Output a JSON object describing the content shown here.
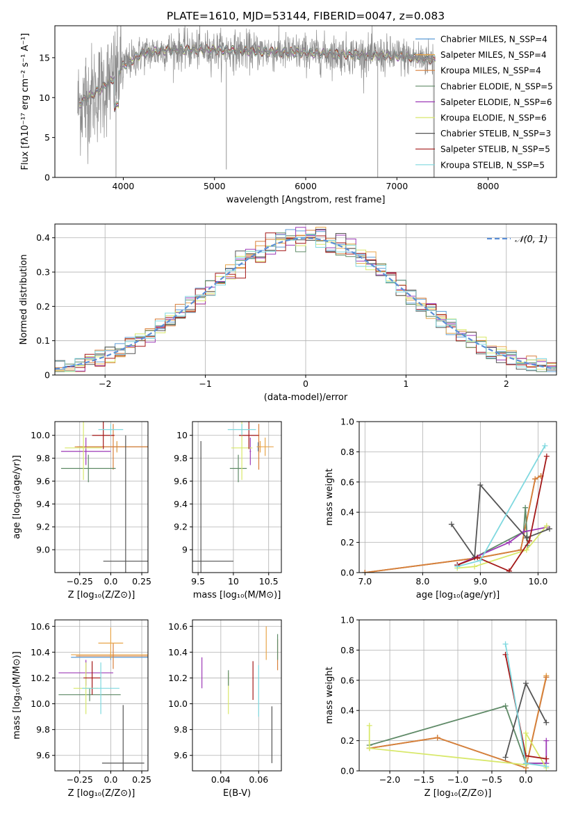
{
  "colors": {
    "chabrier_miles": "#5b9bd5",
    "salpeter_miles": "#e8a54a",
    "kroupa_miles": "#d87f3a",
    "chabrier_elodie": "#5f8a67",
    "salpeter_elodie": "#9c39b6",
    "kroupa_elodie": "#d8e86a",
    "chabrier_stelib": "#555555",
    "salpeter_stelib": "#a31717",
    "kroupa_stelib": "#7fd8df",
    "data_gray": "#8a8a8a",
    "gauss": "#5b8ed6",
    "grid": "#b0b0b0"
  },
  "chart_data": [
    {
      "id": "spectrum",
      "type": "line",
      "title": "PLATE=1610, MJD=53144, FIBERID=0047, z=0.083",
      "xlabel": "wavelength [Angstrom, rest frame]",
      "ylabel": "Flux [fλ10⁻¹⁷ erg cm⁻² s⁻¹ A⁻¹]",
      "xlim": [
        3250,
        8750
      ],
      "ylim": [
        0,
        19
      ],
      "xticks": [
        4000,
        5000,
        6000,
        7000,
        8000
      ],
      "yticks": [
        0,
        5,
        10,
        15
      ],
      "grid": false,
      "legend_position": "top-right",
      "continuum_points": [
        [
          3500,
          9
        ],
        [
          3600,
          10
        ],
        [
          3750,
          11
        ],
        [
          3900,
          12.5
        ],
        [
          4000,
          14
        ],
        [
          4200,
          15.5
        ],
        [
          4500,
          16
        ],
        [
          5000,
          16
        ],
        [
          5500,
          15.8
        ],
        [
          6000,
          15.6
        ],
        [
          6500,
          15.4
        ],
        [
          7000,
          15.2
        ],
        [
          7400,
          14.8
        ]
      ],
      "legend": [
        "Chabrier MILES, N_SSP=4",
        "Salpeter MILES, N_SSP=4",
        "Kroupa MILES, N_SSP=4",
        "Chabrier ELODIE, N_SSP=5",
        "Salpeter ELODIE, N_SSP=6",
        "Kroupa ELODIE, N_SSP=6",
        "Chabrier STELIB, N_SSP=3",
        "Salpeter STELIB, N_SSP=5",
        "Kroupa STELIB, N_SSP=5"
      ]
    },
    {
      "id": "residuals",
      "type": "histogram",
      "xlabel": "(data-model)/error",
      "ylabel": "Normed distribution",
      "xlim": [
        -2.5,
        2.5
      ],
      "ylim": [
        0,
        0.44
      ],
      "xticks": [
        -2,
        -1,
        0,
        1,
        2
      ],
      "yticks": [
        0.0,
        0.1,
        0.2,
        0.3,
        0.4
      ],
      "grid": true,
      "legend": [
        "𝒩(0, 1)"
      ],
      "legend_position": "top-right",
      "bin_width": 0.1,
      "gaussian": {
        "mean": 0,
        "sigma": 1
      }
    },
    {
      "id": "age_vs_Z",
      "type": "errorbar",
      "xlabel": "Z [log₁₀(Z/Z⊙)]",
      "ylabel": "age  [log₁₀(age/yr)]",
      "xlim": [
        -0.45,
        0.3
      ],
      "ylim": [
        8.8,
        10.12
      ],
      "xticks": [
        -0.25,
        0.0,
        0.25
      ],
      "yticks": [
        9.0,
        9.2,
        9.4,
        9.6,
        9.8,
        10.0
      ],
      "grid": true,
      "points": [
        {
          "series": "chabrier_miles",
          "x": 0.05,
          "xerr": 0.3,
          "y": 9.9,
          "yerr": 0.04
        },
        {
          "series": "salpeter_miles",
          "x": 0.05,
          "xerr": 0.32,
          "y": 9.9,
          "yerr": 0.05
        },
        {
          "series": "kroupa_miles",
          "x": 0.02,
          "xerr": 0.31,
          "y": 9.9,
          "yerr": 0.2
        },
        {
          "series": "chabrier_elodie",
          "x": -0.18,
          "xerr": 0.22,
          "y": 9.71,
          "yerr": 0.12
        },
        {
          "series": "salpeter_elodie",
          "x": -0.2,
          "xerr": 0.2,
          "y": 9.86,
          "yerr": 0.12
        },
        {
          "series": "kroupa_elodie",
          "x": -0.22,
          "xerr": 0.15,
          "y": 9.89,
          "yerr": 0.28
        },
        {
          "series": "chabrier_stelib",
          "x": 0.12,
          "xerr": 0.18,
          "y": 8.9,
          "yerr": 1.1
        },
        {
          "series": "salpeter_stelib",
          "x": -0.06,
          "xerr": 0.09,
          "y": 10.0,
          "yerr": 0.12
        },
        {
          "series": "kroupa_stelib",
          "x": 0.0,
          "xerr": 0.1,
          "y": 10.05,
          "yerr": 0.05
        }
      ]
    },
    {
      "id": "age_vs_mass",
      "type": "errorbar",
      "xlabel": "mass [log₁₀(M/M⊙)]",
      "ylabel": "",
      "xlim": [
        9.42,
        10.68
      ],
      "ylim": [
        8.8,
        10.12
      ],
      "xticks": [
        9.5,
        10.0,
        10.5
      ],
      "yticks": [
        9.0,
        9.2,
        9.4,
        9.6,
        9.8,
        10.0
      ],
      "grid": true,
      "points": [
        {
          "series": "chabrier_miles",
          "x": 10.35,
          "xerr": 0.01,
          "y": 9.9,
          "yerr": 0.04
        },
        {
          "series": "salpeter_miles",
          "x": 10.38,
          "xerr": 0.01,
          "y": 9.9,
          "yerr": 0.05
        },
        {
          "series": "kroupa_miles",
          "x": 10.36,
          "xerr": 0.01,
          "y": 9.9,
          "yerr": 0.2
        },
        {
          "series": "chabrier_elodie",
          "x": 10.07,
          "xerr": 0.12,
          "y": 9.71,
          "yerr": 0.12
        },
        {
          "series": "salpeter_elodie",
          "x": 10.24,
          "xerr": 0.01,
          "y": 9.86,
          "yerr": 0.12
        },
        {
          "series": "kroupa_elodie",
          "x": 10.12,
          "xerr": 0.15,
          "y": 9.89,
          "yerr": 0.28
        },
        {
          "series": "chabrier_stelib",
          "x": 9.54,
          "xerr": 0.46,
          "y": 8.9,
          "yerr": 1.05
        },
        {
          "series": "salpeter_stelib",
          "x": 10.22,
          "xerr": 0.14,
          "y": 10.0,
          "yerr": 0.12
        },
        {
          "series": "kroupa_stelib",
          "x": 10.12,
          "xerr": 0.2,
          "y": 10.05,
          "yerr": 0.05
        },
        {
          "series": "salpeter_miles",
          "x": 10.45,
          "xerr": 0.12,
          "y": 9.9,
          "yerr": 0.08
        }
      ]
    },
    {
      "id": "weight_vs_age",
      "type": "line",
      "xlabel": "age  [log₁₀(age/yr)]",
      "ylabel": "mass weight",
      "xlim": [
        6.9,
        10.32
      ],
      "ylim": [
        0,
        1.0
      ],
      "xticks": [
        7,
        8,
        9,
        10
      ],
      "yticks": [
        0.0,
        0.2,
        0.4,
        0.6,
        0.8,
        1.0
      ],
      "grid": true,
      "series": [
        {
          "series": "chabrier_miles",
          "points": [
            [
              7.0,
              0.0
            ],
            [
              9.0,
              0.1
            ],
            [
              9.7,
              0.15
            ],
            [
              9.95,
              0.62
            ],
            [
              10.05,
              0.64
            ]
          ]
        },
        {
          "series": "salpeter_miles",
          "points": [
            [
              7.0,
              0.0
            ],
            [
              9.0,
              0.1
            ],
            [
              9.7,
              0.15
            ],
            [
              9.95,
              0.62
            ],
            [
              10.05,
              0.64
            ]
          ]
        },
        {
          "series": "kroupa_miles",
          "points": [
            [
              7.0,
              0.0
            ],
            [
              9.0,
              0.1
            ],
            [
              9.7,
              0.15
            ],
            [
              9.95,
              0.62
            ],
            [
              10.05,
              0.64
            ]
          ]
        },
        {
          "series": "chabrier_elodie",
          "points": [
            [
              8.6,
              0.05
            ],
            [
              8.9,
              0.1
            ],
            [
              9.75,
              0.27
            ],
            [
              9.78,
              0.43
            ],
            [
              9.82,
              0.18
            ]
          ]
        },
        {
          "series": "salpeter_elodie",
          "points": [
            [
              8.6,
              0.05
            ],
            [
              8.9,
              0.1
            ],
            [
              9.5,
              0.2
            ],
            [
              9.75,
              0.27
            ],
            [
              10.15,
              0.3
            ]
          ]
        },
        {
          "series": "kroupa_elodie",
          "points": [
            [
              8.6,
              0.03
            ],
            [
              8.9,
              0.04
            ],
            [
              9.8,
              0.15
            ],
            [
              10.15,
              0.31
            ]
          ]
        },
        {
          "series": "chabrier_stelib",
          "points": [
            [
              8.5,
              0.32
            ],
            [
              8.9,
              0.1
            ],
            [
              9.0,
              0.58
            ],
            [
              9.8,
              0.23
            ],
            [
              10.2,
              0.29
            ]
          ]
        },
        {
          "series": "salpeter_stelib",
          "points": [
            [
              8.6,
              0.05
            ],
            [
              8.95,
              0.1
            ],
            [
              9.5,
              0.01
            ],
            [
              9.85,
              0.21
            ],
            [
              10.15,
              0.77
            ]
          ]
        },
        {
          "series": "kroupa_stelib",
          "points": [
            [
              8.6,
              0.04
            ],
            [
              9.0,
              0.08
            ],
            [
              10.12,
              0.84
            ]
          ]
        }
      ]
    },
    {
      "id": "mass_vs_Z",
      "type": "errorbar",
      "xlabel": "Z [log₁₀(Z/Z⊙)]",
      "ylabel": "mass [log₁₀(M/M⊙)]",
      "xlim": [
        -0.45,
        0.3
      ],
      "ylim": [
        9.48,
        10.65
      ],
      "xticks": [
        -0.25,
        0.0,
        0.25
      ],
      "yticks": [
        9.6,
        9.8,
        10.0,
        10.2,
        10.4,
        10.6
      ],
      "grid": true,
      "points": [
        {
          "series": "chabrier_miles",
          "x": 0.0,
          "xerr": 0.32,
          "y": 10.36,
          "yerr": 0.02
        },
        {
          "series": "salpeter_miles",
          "x": 0.0,
          "xerr": 0.32,
          "y": 10.38,
          "yerr": 0.02
        },
        {
          "series": "kroupa_miles",
          "x": 0.02,
          "xerr": 0.3,
          "y": 10.37,
          "yerr": 0.1
        },
        {
          "series": "chabrier_elodie",
          "x": -0.17,
          "xerr": 0.25,
          "y": 10.07,
          "yerr": 0.05
        },
        {
          "series": "salpeter_elodie",
          "x": -0.2,
          "xerr": 0.22,
          "y": 10.24,
          "yerr": 0.1
        },
        {
          "series": "kroupa_elodie",
          "x": -0.2,
          "xerr": 0.1,
          "y": 10.12,
          "yerr": 0.2
        },
        {
          "series": "chabrier_stelib",
          "x": 0.1,
          "xerr": 0.17,
          "y": 9.54,
          "yerr": 0.45
        },
        {
          "series": "salpeter_stelib",
          "x": -0.15,
          "xerr": 0.07,
          "y": 10.2,
          "yerr": 0.13
        },
        {
          "series": "kroupa_stelib",
          "x": -0.08,
          "xerr": 0.15,
          "y": 10.12,
          "yerr": 0.2
        },
        {
          "series": "salpeter_miles",
          "x": 0.0,
          "xerr": 0.1,
          "y": 10.47,
          "yerr": 0.12
        }
      ]
    },
    {
      "id": "mass_vs_ebv",
      "type": "errorbar",
      "xlabel": "E(B-V)",
      "ylabel": "",
      "xlim": [
        0.025,
        0.072
      ],
      "ylim": [
        9.48,
        10.65
      ],
      "xticks": [
        0.04,
        0.06
      ],
      "yticks": [
        9.6,
        9.8,
        10.0,
        10.2,
        10.4,
        10.6
      ],
      "grid": true,
      "points": [
        {
          "series": "salpeter_elodie",
          "x": 0.03,
          "y": 10.24,
          "yerr": 0.12
        },
        {
          "series": "kroupa_elodie",
          "x": 0.044,
          "y": 10.08,
          "yerr": 0.16
        },
        {
          "series": "chabrier_elodie",
          "x": 0.044,
          "y": 10.2,
          "yerr": 0.06
        },
        {
          "series": "salpeter_stelib",
          "x": 0.057,
          "y": 10.18,
          "yerr": 0.15
        },
        {
          "series": "kroupa_stelib",
          "x": 0.06,
          "y": 10.1,
          "yerr": 0.2
        },
        {
          "series": "salpeter_miles",
          "x": 0.064,
          "y": 10.47,
          "yerr": 0.13
        },
        {
          "series": "chabrier_stelib",
          "x": 0.067,
          "y": 9.76,
          "yerr": 0.22
        },
        {
          "series": "kroupa_miles",
          "x": 0.07,
          "y": 10.38,
          "yerr": 0.12
        },
        {
          "series": "chabrier_elodie",
          "x": 0.07,
          "y": 10.44,
          "yerr": 0.1
        }
      ]
    },
    {
      "id": "weight_vs_Z",
      "type": "line",
      "xlabel": "Z [log₁₀(Z/Z⊙)]",
      "ylabel": "mass weight",
      "xlim": [
        -2.45,
        0.45
      ],
      "ylim": [
        0,
        1.0
      ],
      "xticks": [
        -2.0,
        -1.5,
        -1.0,
        -0.5,
        0.0
      ],
      "yticks": [
        0.0,
        0.2,
        0.4,
        0.6,
        0.8,
        1.0
      ],
      "grid": true,
      "series": [
        {
          "series": "chabrier_miles",
          "points": [
            [
              -2.3,
              0.15
            ],
            [
              -1.3,
              0.22
            ],
            [
              0.0,
              0.02
            ],
            [
              0.3,
              0.62
            ]
          ]
        },
        {
          "series": "salpeter_miles",
          "points": [
            [
              -2.3,
              0.15
            ],
            [
              -1.3,
              0.22
            ],
            [
              0.0,
              0.02
            ],
            [
              0.3,
              0.63
            ]
          ]
        },
        {
          "series": "kroupa_miles",
          "points": [
            [
              -2.3,
              0.15
            ],
            [
              -1.3,
              0.22
            ],
            [
              0.0,
              0.02
            ],
            [
              0.3,
              0.62
            ]
          ]
        },
        {
          "series": "chabrier_elodie",
          "points": [
            [
              -2.3,
              0.17
            ],
            [
              -0.3,
              0.43
            ],
            [
              0.0,
              0.05
            ],
            [
              0.3,
              0.05
            ]
          ]
        },
        {
          "series": "salpeter_elodie",
          "points": [
            [
              0.0,
              0.05
            ],
            [
              0.3,
              0.05
            ],
            [
              0.3,
              0.2
            ]
          ]
        },
        {
          "series": "kroupa_elodie",
          "points": [
            [
              -2.3,
              0.3
            ],
            [
              -2.3,
              0.15
            ],
            [
              0.0,
              0.04
            ],
            [
              0.0,
              0.25
            ],
            [
              0.3,
              0.02
            ]
          ]
        },
        {
          "series": "chabrier_stelib",
          "points": [
            [
              -0.3,
              0.09
            ],
            [
              0.0,
              0.58
            ],
            [
              0.3,
              0.32
            ]
          ]
        },
        {
          "series": "salpeter_stelib",
          "points": [
            [
              -0.3,
              0.77
            ],
            [
              0.0,
              0.1
            ],
            [
              0.3,
              0.08
            ]
          ]
        },
        {
          "series": "kroupa_stelib",
          "points": [
            [
              -0.3,
              0.84
            ],
            [
              0.0,
              0.05
            ],
            [
              0.3,
              0.03
            ]
          ]
        }
      ]
    }
  ]
}
